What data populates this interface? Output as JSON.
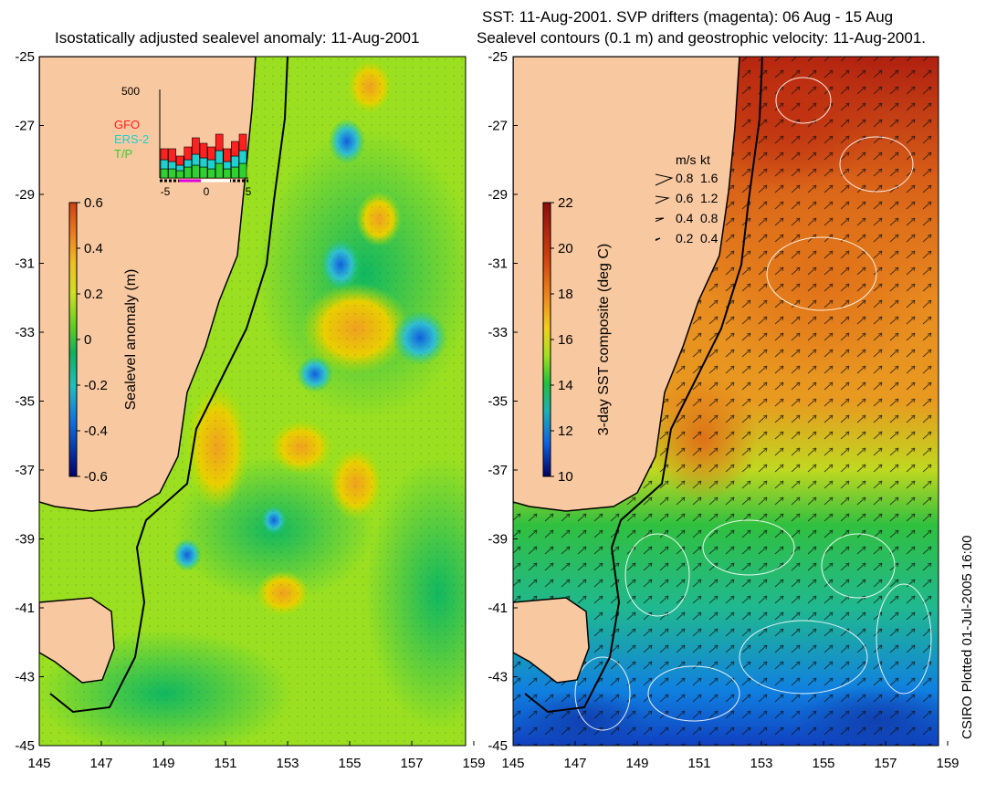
{
  "left_panel": {
    "title": "Isostatically adjusted sealevel anomaly: 11-Aug-2001",
    "colorbar": {
      "label": "Sealevel anomaly (m)",
      "ticks": [
        "0.6",
        "0.4",
        "0.2",
        "0",
        "-0.2",
        "-0.4",
        "-0.6"
      ],
      "colors": [
        "#f2d800",
        "#ffb000",
        "#e8d000",
        "#b8e000",
        "#00c050",
        "#20c8a0",
        "#20a0e0",
        "#1050d0",
        "#000060"
      ]
    },
    "inset": {
      "ymax_label": "500",
      "x_ticks": [
        "-5",
        "0",
        "5"
      ],
      "legend": [
        {
          "name": "GFO",
          "color": "#ff2020"
        },
        {
          "name": "ERS-2",
          "color": "#20d0d0"
        },
        {
          "name": "T/P",
          "color": "#30d030"
        }
      ]
    }
  },
  "right_panel": {
    "title_line1": "SST: 11-Aug-2001. SVP drifters (magenta): 06 Aug - 15 Aug",
    "title_line2": "Sealevel contours (0.1 m) and geostrophic velocity: 11-Aug-2001.",
    "colorbar": {
      "label": "3-day SST composite (deg C)",
      "ticks": [
        "22",
        "20",
        "18",
        "16",
        "14",
        "12",
        "10"
      ],
      "colors": [
        "#a01010",
        "#d04010",
        "#f08020",
        "#f0c020",
        "#c0e020",
        "#20c040",
        "#20b0a0",
        "#1080e0",
        "#0030a0",
        "#000060"
      ]
    },
    "velocity_legend": {
      "header_ms": "m/s",
      "header_kt": "kt",
      "rows": [
        {
          "ms": "0.8",
          "kt": "1.6"
        },
        {
          "ms": "0.6",
          "kt": "1.2"
        },
        {
          "ms": "0.4",
          "kt": "0.8"
        },
        {
          "ms": "0.2",
          "kt": "0.4"
        }
      ]
    }
  },
  "axes": {
    "lat_labels": [
      "-25",
      "-27",
      "-29",
      "-31",
      "-33",
      "-35",
      "-37",
      "-39",
      "-41",
      "-43",
      "-45"
    ],
    "lon_labels": [
      "145",
      "147",
      "149",
      "151",
      "153",
      "155",
      "157",
      "159"
    ]
  },
  "credit": "CSIRO Plotted 01-Jul-2005 16:00",
  "colors": {
    "land": "#f8c8a0",
    "coast": "#000000"
  }
}
